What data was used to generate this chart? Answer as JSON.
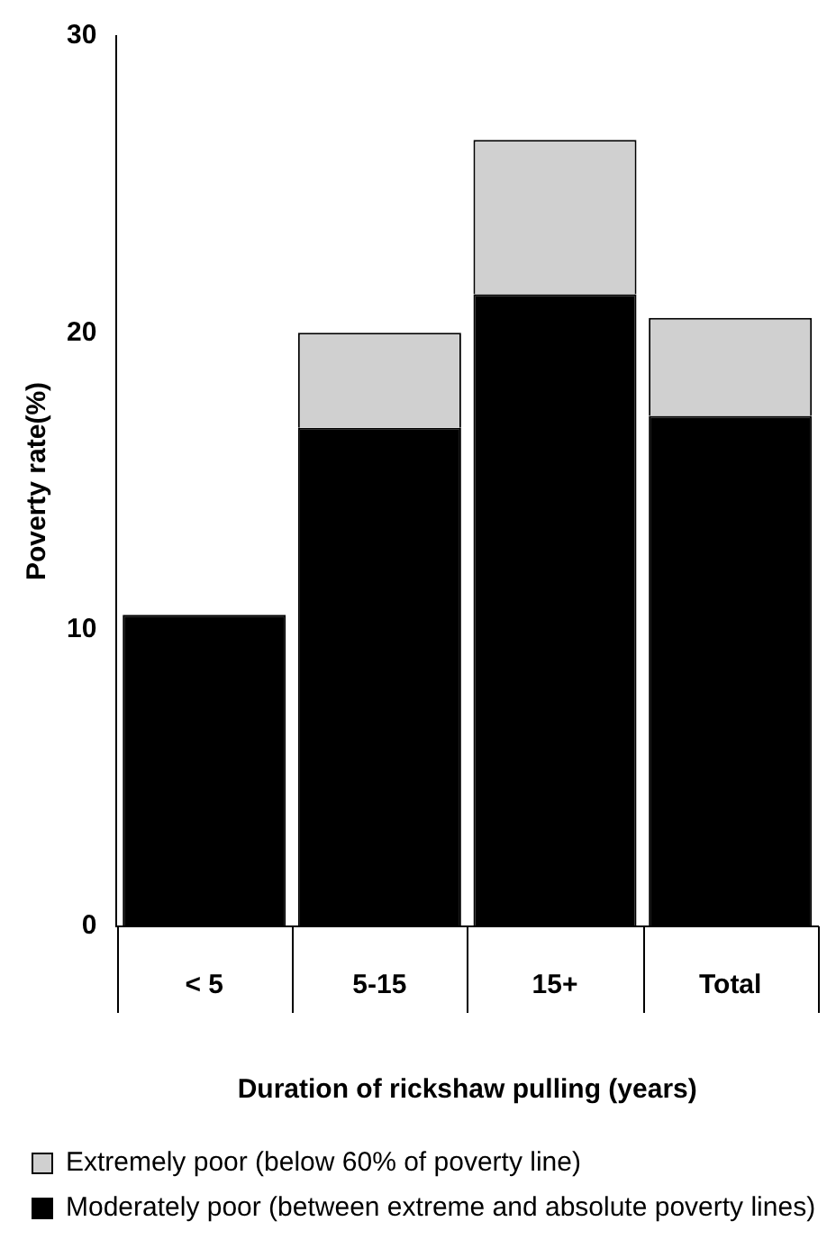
{
  "chart_data": {
    "type": "bar",
    "stacked": true,
    "ylabel": "Poverty rate(%)",
    "xlabel": "Duration of rickshaw pulling (years)",
    "categories": [
      "< 5",
      "5-15",
      "15+",
      "Total"
    ],
    "series": [
      {
        "name": "Moderately poor (between extreme and absolute poverty lines)",
        "color": "#000000",
        "values": [
          10.5,
          16.8,
          21.3,
          17.2
        ]
      },
      {
        "name": "Extremely poor (below 60% of poverty line)",
        "color": "#d0d0d0",
        "values": [
          0,
          3.2,
          5.2,
          3.3
        ]
      }
    ],
    "ylim": [
      0,
      30
    ],
    "yticks": [
      0,
      10,
      20,
      30
    ],
    "legend": "bottom"
  }
}
